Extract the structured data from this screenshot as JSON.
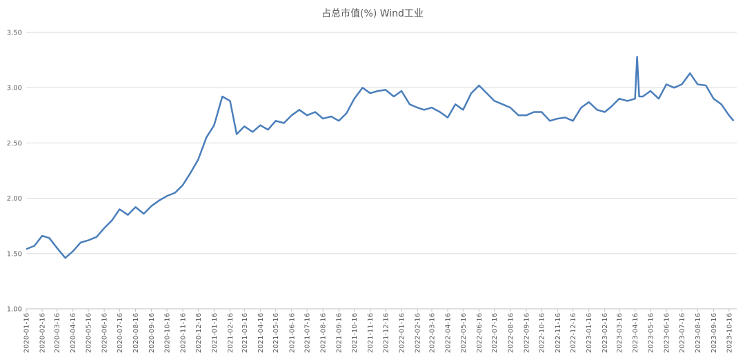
{
  "chart_data": {
    "type": "line",
    "title": "占总市值(%) Wind工业",
    "x": [
      "2020-01-16",
      "2020-02-01",
      "2020-02-16",
      "2020-03-01",
      "2020-03-16",
      "2020-04-01",
      "2020-04-16",
      "2020-05-01",
      "2020-05-16",
      "2020-06-01",
      "2020-06-16",
      "2020-07-01",
      "2020-07-16",
      "2020-08-01",
      "2020-08-16",
      "2020-09-01",
      "2020-09-16",
      "2020-10-01",
      "2020-10-16",
      "2020-11-01",
      "2020-11-16",
      "2020-12-01",
      "2020-12-16",
      "2021-01-01",
      "2021-01-16",
      "2021-02-01",
      "2021-02-16",
      "2021-03-01",
      "2021-03-16",
      "2021-04-01",
      "2021-04-16",
      "2021-05-01",
      "2021-05-16",
      "2021-06-01",
      "2021-06-16",
      "2021-07-01",
      "2021-07-16",
      "2021-08-01",
      "2021-08-16",
      "2021-09-01",
      "2021-09-16",
      "2021-10-01",
      "2021-10-16",
      "2021-11-01",
      "2021-11-16",
      "2021-12-01",
      "2021-12-16",
      "2022-01-01",
      "2022-01-16",
      "2022-02-01",
      "2022-02-16",
      "2022-03-01",
      "2022-03-16",
      "2022-04-01",
      "2022-04-16",
      "2022-05-01",
      "2022-05-16",
      "2022-06-01",
      "2022-06-16",
      "2022-07-01",
      "2022-07-16",
      "2022-08-01",
      "2022-08-16",
      "2022-09-01",
      "2022-09-16",
      "2022-10-01",
      "2022-10-16",
      "2022-11-01",
      "2022-11-16",
      "2022-12-01",
      "2022-12-16",
      "2023-01-01",
      "2023-01-16",
      "2023-02-01",
      "2023-02-16",
      "2023-03-01",
      "2023-03-16",
      "2023-04-01",
      "2023-04-16",
      "2023-04-20",
      "2023-04-24",
      "2023-05-01",
      "2023-05-16",
      "2023-06-01",
      "2023-06-16",
      "2023-07-01",
      "2023-07-16",
      "2023-08-01",
      "2023-08-16",
      "2023-09-01",
      "2023-09-16",
      "2023-10-01",
      "2023-10-16",
      "2023-10-25"
    ],
    "series": [
      {
        "name": "Wind工业",
        "color": "#4a7ebb",
        "values": [
          1.54,
          1.57,
          1.66,
          1.64,
          1.55,
          1.46,
          1.52,
          1.6,
          1.62,
          1.65,
          1.73,
          1.8,
          1.9,
          1.85,
          1.92,
          1.86,
          1.93,
          1.98,
          2.02,
          2.05,
          2.12,
          2.23,
          2.35,
          2.55,
          2.66,
          2.92,
          2.88,
          2.58,
          2.65,
          2.6,
          2.66,
          2.62,
          2.7,
          2.68,
          2.75,
          2.8,
          2.75,
          2.78,
          2.72,
          2.74,
          2.7,
          2.77,
          2.9,
          3.0,
          2.95,
          2.97,
          2.98,
          2.92,
          2.97,
          2.85,
          2.82,
          2.8,
          2.82,
          2.78,
          2.73,
          2.85,
          2.8,
          2.95,
          3.02,
          2.95,
          2.88,
          2.85,
          2.82,
          2.75,
          2.75,
          2.78,
          2.78,
          2.7,
          2.72,
          2.73,
          2.7,
          2.82,
          2.87,
          2.8,
          2.78,
          2.83,
          2.9,
          2.88,
          2.9,
          3.28,
          2.92,
          2.92,
          2.97,
          2.9,
          3.03,
          3.0,
          3.03,
          3.13,
          3.03,
          3.02,
          2.9,
          2.85,
          2.75,
          2.7
        ]
      }
    ],
    "xlim": [
      "2020-01-16",
      "2023-10-31"
    ],
    "xticks": [
      "2020-01-16",
      "2020-02-16",
      "2020-03-16",
      "2020-04-16",
      "2020-05-16",
      "2020-06-16",
      "2020-07-16",
      "2020-08-16",
      "2020-09-16",
      "2020-10-16",
      "2020-11-16",
      "2020-12-16",
      "2021-01-16",
      "2021-02-16",
      "2021-03-16",
      "2021-04-16",
      "2021-05-16",
      "2021-06-16",
      "2021-07-16",
      "2021-08-16",
      "2021-09-16",
      "2021-10-16",
      "2021-11-16",
      "2021-12-16",
      "2022-01-16",
      "2022-02-16",
      "2022-03-16",
      "2022-04-16",
      "2022-05-16",
      "2022-06-16",
      "2022-07-16",
      "2022-08-16",
      "2022-09-16",
      "2022-10-16",
      "2022-11-16",
      "2022-12-16",
      "2023-01-16",
      "2023-02-16",
      "2023-03-16",
      "2023-04-16",
      "2023-05-16",
      "2023-06-16",
      "2023-07-16",
      "2023-08-16",
      "2023-09-16",
      "2023-10-16"
    ],
    "ylim": [
      1.0,
      3.5
    ],
    "yticks": [
      {
        "value": 1.0,
        "label": "1.00"
      },
      {
        "value": 1.5,
        "label": "1.50"
      },
      {
        "value": 2.0,
        "label": "2.00"
      },
      {
        "value": 2.5,
        "label": "2.50"
      },
      {
        "value": 3.0,
        "label": "3.00"
      },
      {
        "value": 3.5,
        "label": "3.50"
      }
    ],
    "grid": true
  }
}
